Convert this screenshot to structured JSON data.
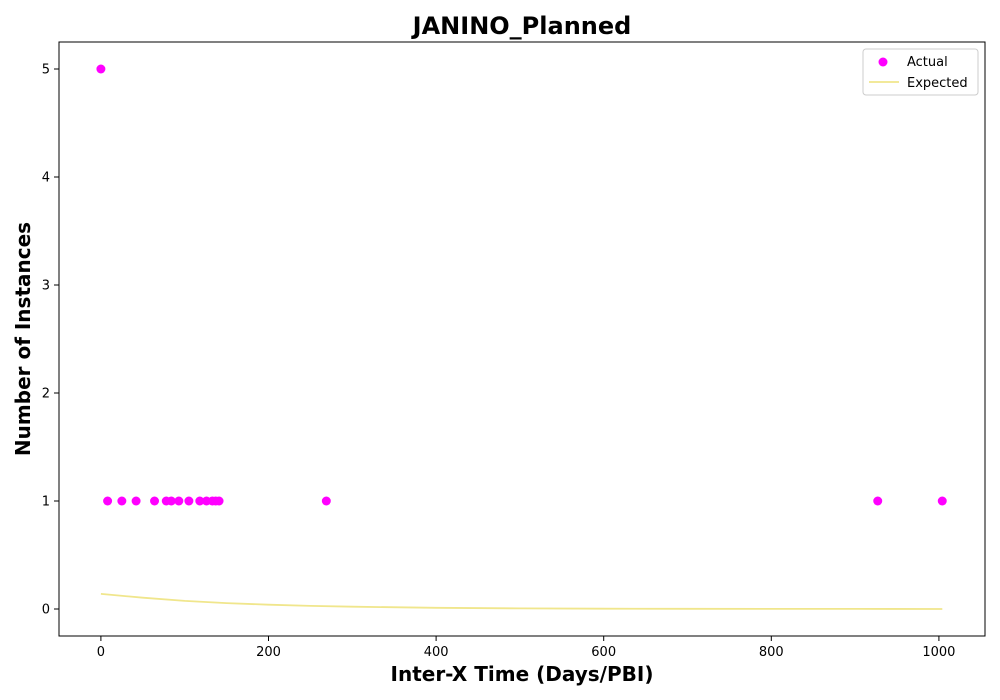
{
  "chart_data": {
    "type": "scatter",
    "title": "JANINO_Planned",
    "xlabel": "Inter-X Time (Days/PBI)",
    "ylabel": "Number of Instances",
    "xlim": [
      -50,
      1055
    ],
    "ylim": [
      -0.25,
      5.25
    ],
    "xticks": [
      0,
      200,
      400,
      600,
      800,
      1000
    ],
    "yticks": [
      0,
      1,
      2,
      3,
      4,
      5
    ],
    "grid": false,
    "legend_position": "top-right",
    "series": [
      {
        "name": "Actual",
        "kind": "scatter",
        "color": "#ff00ff",
        "points": [
          {
            "x": 0,
            "y": 5
          },
          {
            "x": 8,
            "y": 1
          },
          {
            "x": 25,
            "y": 1
          },
          {
            "x": 42,
            "y": 1
          },
          {
            "x": 64,
            "y": 1
          },
          {
            "x": 78,
            "y": 1
          },
          {
            "x": 84,
            "y": 1
          },
          {
            "x": 93,
            "y": 1
          },
          {
            "x": 105,
            "y": 1
          },
          {
            "x": 118,
            "y": 1
          },
          {
            "x": 126,
            "y": 1
          },
          {
            "x": 133,
            "y": 1
          },
          {
            "x": 137,
            "y": 1
          },
          {
            "x": 141,
            "y": 1
          },
          {
            "x": 269,
            "y": 1
          },
          {
            "x": 927,
            "y": 1
          },
          {
            "x": 1004,
            "y": 1
          }
        ]
      },
      {
        "name": "Expected",
        "kind": "line",
        "color": "#f0e68c",
        "points": [
          {
            "x": 0,
            "y": 0.14
          },
          {
            "x": 50,
            "y": 0.105
          },
          {
            "x": 100,
            "y": 0.075
          },
          {
            "x": 150,
            "y": 0.055
          },
          {
            "x": 200,
            "y": 0.04
          },
          {
            "x": 250,
            "y": 0.029
          },
          {
            "x": 300,
            "y": 0.021
          },
          {
            "x": 400,
            "y": 0.011
          },
          {
            "x": 500,
            "y": 0.006
          },
          {
            "x": 600,
            "y": 0.003
          },
          {
            "x": 700,
            "y": 0.002
          },
          {
            "x": 800,
            "y": 0.001
          },
          {
            "x": 900,
            "y": 0.0005
          },
          {
            "x": 1004,
            "y": 0.0002
          }
        ]
      }
    ]
  }
}
